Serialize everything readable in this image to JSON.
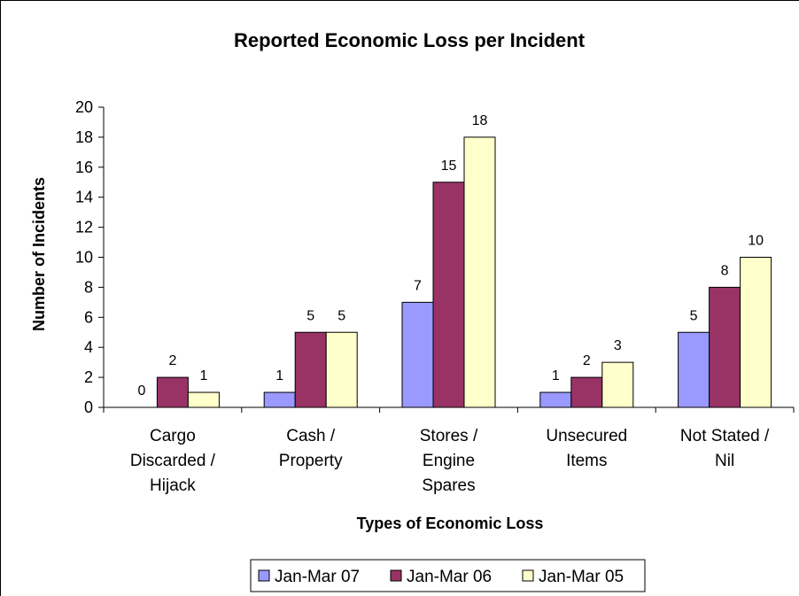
{
  "chart_data": {
    "type": "bar",
    "title": "Reported Economic Loss per Incident",
    "xlabel": "Types of Economic Loss",
    "ylabel": "Number of Incidents",
    "ylim": [
      0,
      20
    ],
    "yticks": [
      0,
      2,
      4,
      6,
      8,
      10,
      12,
      14,
      16,
      18,
      20
    ],
    "categories": [
      [
        "Cargo",
        "Discarded /",
        "Hijack"
      ],
      [
        "Cash /",
        "Property"
      ],
      [
        "Stores /",
        "Engine",
        "Spares"
      ],
      [
        "Unsecured",
        "Items"
      ],
      [
        "Not Stated /",
        "Nil"
      ]
    ],
    "series": [
      {
        "name": "Jan-Mar 07",
        "color": "#9999ff",
        "values": [
          0,
          1,
          7,
          1,
          5
        ]
      },
      {
        "name": "Jan-Mar 06",
        "color": "#993366",
        "values": [
          2,
          5,
          15,
          2,
          8
        ]
      },
      {
        "name": "Jan-Mar 05",
        "color": "#ffffcc",
        "values": [
          1,
          5,
          18,
          3,
          10
        ]
      }
    ],
    "data_labels": true,
    "grid": false,
    "legend_position": "bottom"
  }
}
